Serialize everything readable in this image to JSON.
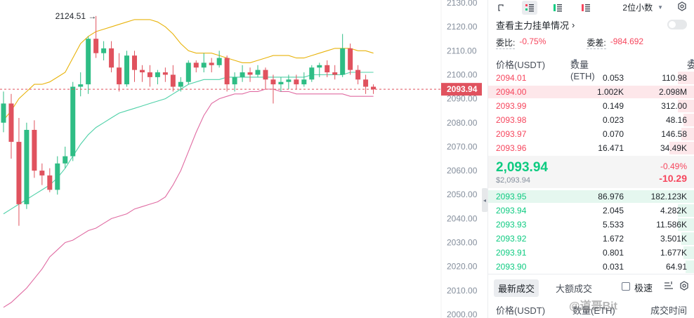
{
  "chart": {
    "y_ticks": [
      "2130.00",
      "2120.00",
      "2110.00",
      "2100.00",
      "2090.00",
      "2080.00",
      "2070.00",
      "2060.00",
      "2050.00",
      "2040.00",
      "2030.00",
      "2020.00",
      "2010.00",
      "2000.00"
    ],
    "high_label": "2124.51 →",
    "last_price_tag": "2093.94",
    "colors": {
      "up": "#2ebd85",
      "down": "#e0525e",
      "ma": "#e8b30b",
      "bb_mid": "#4fd1a8",
      "bb_low": "#e06ba2",
      "price_line": "#e0525e"
    }
  },
  "chart_data": {
    "type": "candlestick",
    "y_range": [
      2000,
      2130
    ],
    "last_price": 2093.94,
    "high_marker": 2124.51,
    "candles": [
      {
        "o": 2080.0,
        "c": 2088.0,
        "h": 2093.0,
        "l": 2076.0
      },
      {
        "o": 2088.0,
        "c": 2072.0,
        "h": 2092.0,
        "l": 2065.0
      },
      {
        "o": 2072.0,
        "c": 2046.0,
        "h": 2082.0,
        "l": 2037.0
      },
      {
        "o": 2046.0,
        "c": 2077.0,
        "h": 2080.0,
        "l": 2044.0
      },
      {
        "o": 2077.0,
        "c": 2060.0,
        "h": 2081.0,
        "l": 2057.0
      },
      {
        "o": 2060.0,
        "c": 2058.0,
        "h": 2063.0,
        "l": 2054.0
      },
      {
        "o": 2058.0,
        "c": 2052.0,
        "h": 2061.0,
        "l": 2051.0
      },
      {
        "o": 2052.0,
        "c": 2063.0,
        "h": 2066.0,
        "l": 2050.0
      },
      {
        "o": 2063.0,
        "c": 2066.0,
        "h": 2070.0,
        "l": 2061.0
      },
      {
        "o": 2066.0,
        "c": 2095.0,
        "h": 2097.0,
        "l": 2064.0
      },
      {
        "o": 2095.0,
        "c": 2096.0,
        "h": 2101.0,
        "l": 2091.0
      },
      {
        "o": 2096.0,
        "c": 2115.0,
        "h": 2116.0,
        "l": 2092.0
      },
      {
        "o": 2115.0,
        "c": 2109.0,
        "h": 2124.5,
        "l": 2107.0
      },
      {
        "o": 2109.0,
        "c": 2111.0,
        "h": 2114.0,
        "l": 2106.0
      },
      {
        "o": 2111.0,
        "c": 2103.0,
        "h": 2114.0,
        "l": 2101.0
      },
      {
        "o": 2103.0,
        "c": 2096.0,
        "h": 2109.0,
        "l": 2093.0
      },
      {
        "o": 2096.0,
        "c": 2108.0,
        "h": 2110.0,
        "l": 2095.0
      },
      {
        "o": 2108.0,
        "c": 2102.0,
        "h": 2110.0,
        "l": 2097.0
      },
      {
        "o": 2102.0,
        "c": 2101.0,
        "h": 2104.0,
        "l": 2097.0
      },
      {
        "o": 2101.0,
        "c": 2099.0,
        "h": 2104.0,
        "l": 2095.0
      },
      {
        "o": 2099.0,
        "c": 2101.0,
        "h": 2102.0,
        "l": 2096.0
      },
      {
        "o": 2101.0,
        "c": 2100.0,
        "h": 2103.0,
        "l": 2097.0
      },
      {
        "o": 2100.0,
        "c": 2095.0,
        "h": 2104.0,
        "l": 2093.0
      },
      {
        "o": 2095.0,
        "c": 2097.0,
        "h": 2099.0,
        "l": 2093.0
      },
      {
        "o": 2097.0,
        "c": 2105.0,
        "h": 2106.0,
        "l": 2096.0
      },
      {
        "o": 2105.0,
        "c": 2103.0,
        "h": 2106.0,
        "l": 2101.0
      },
      {
        "o": 2103.0,
        "c": 2105.0,
        "h": 2109.0,
        "l": 2101.0
      },
      {
        "o": 2105.0,
        "c": 2104.0,
        "h": 2107.0,
        "l": 2101.0
      },
      {
        "o": 2104.0,
        "c": 2107.0,
        "h": 2110.0,
        "l": 2103.0
      },
      {
        "o": 2107.0,
        "c": 2096.0,
        "h": 2108.0,
        "l": 2093.0
      },
      {
        "o": 2096.0,
        "c": 2099.0,
        "h": 2101.0,
        "l": 2093.0
      },
      {
        "o": 2099.0,
        "c": 2101.0,
        "h": 2104.0,
        "l": 2097.0
      },
      {
        "o": 2101.0,
        "c": 2100.0,
        "h": 2103.0,
        "l": 2097.0
      },
      {
        "o": 2100.0,
        "c": 2102.0,
        "h": 2104.0,
        "l": 2099.0
      },
      {
        "o": 2102.0,
        "c": 2098.0,
        "h": 2103.0,
        "l": 2094.0
      },
      {
        "o": 2098.0,
        "c": 2096.0,
        "h": 2100.0,
        "l": 2088.0
      },
      {
        "o": 2096.0,
        "c": 2097.0,
        "h": 2099.0,
        "l": 2093.0
      },
      {
        "o": 2097.0,
        "c": 2098.0,
        "h": 2100.0,
        "l": 2094.0
      },
      {
        "o": 2098.0,
        "c": 2096.0,
        "h": 2100.0,
        "l": 2094.0
      },
      {
        "o": 2096.0,
        "c": 2098.0,
        "h": 2101.0,
        "l": 2095.0
      },
      {
        "o": 2098.0,
        "c": 2103.0,
        "h": 2104.0,
        "l": 2097.0
      },
      {
        "o": 2103.0,
        "c": 2104.0,
        "h": 2105.0,
        "l": 2099.0
      },
      {
        "o": 2104.0,
        "c": 2101.0,
        "h": 2106.0,
        "l": 2099.0
      },
      {
        "o": 2101.0,
        "c": 2100.0,
        "h": 2104.0,
        "l": 2098.0
      },
      {
        "o": 2100.0,
        "c": 2111.0,
        "h": 2117.0,
        "l": 2099.0
      },
      {
        "o": 2111.0,
        "c": 2102.0,
        "h": 2113.0,
        "l": 2100.0
      },
      {
        "o": 2102.0,
        "c": 2098.0,
        "h": 2104.0,
        "l": 2096.0
      },
      {
        "o": 2098.0,
        "c": 2095.0,
        "h": 2100.0,
        "l": 2092.0
      },
      {
        "o": 2095.0,
        "c": 2093.9,
        "h": 2096.0,
        "l": 2092.0
      }
    ],
    "ma_line": [
      2081,
      2085,
      2090,
      2093,
      2096,
      2096,
      2097,
      2099,
      2101,
      2107,
      2113,
      2116,
      2118,
      2119,
      2120,
      2121,
      2122,
      2123,
      2123,
      2123,
      2122,
      2120,
      2117,
      2113,
      2110,
      2109,
      2109,
      2109,
      2108,
      2107,
      2106,
      2105,
      2105,
      2106,
      2107,
      2108,
      2108,
      2108,
      2107,
      2107,
      2108,
      2109,
      2110,
      2111,
      2111,
      2111,
      2110,
      2110,
      2109
    ],
    "bb_mid_line": [
      2042,
      2044,
      2046,
      2048,
      2050,
      2052,
      2054,
      2057,
      2061,
      2066,
      2071,
      2075,
      2078,
      2080,
      2082,
      2084,
      2085,
      2086,
      2087,
      2088,
      2089,
      2090,
      2092,
      2094,
      2096,
      2097,
      2098,
      2098,
      2098,
      2099,
      2099,
      2099,
      2099,
      2099,
      2099,
      2099,
      2099,
      2099,
      2099,
      2099,
      2100,
      2100,
      2100,
      2100,
      2100,
      2101,
      2101,
      2101,
      2101
    ],
    "bb_low_line": [
      2003,
      2005,
      2008,
      2011,
      2015,
      2019,
      2024,
      2027,
      2030,
      2031,
      2033,
      2035,
      2036,
      2038,
      2040,
      2041,
      2042,
      2044,
      2045,
      2046,
      2047,
      2049,
      2054,
      2060,
      2068,
      2076,
      2083,
      2088,
      2090,
      2091,
      2092,
      2092,
      2093,
      2093,
      2094,
      2094,
      2093,
      2093,
      2092,
      2092,
      2092,
      2092,
      2092,
      2092,
      2092,
      2091,
      2091,
      2091,
      2091
    ]
  },
  "toolbar": {
    "decimals": "2位小数",
    "main_link": "查看主力挂单情况",
    "ratio_label": "委比:",
    "ratio_value": "-0.75%",
    "diff_label": "委差:",
    "diff_value": "-984.692"
  },
  "book": {
    "headers": {
      "price": "价格(USDT)",
      "qty": "数量 (ETH)",
      "total": "委托额"
    },
    "asks": [
      {
        "price": "2094.01",
        "qty": "0.053",
        "total": "110.98",
        "depth": 0.08
      },
      {
        "price": "2094.00",
        "qty": "1.002K",
        "total": "2.098M",
        "depth": 1.0
      },
      {
        "price": "2093.99",
        "qty": "0.149",
        "total": "312.00",
        "depth": 0.08
      },
      {
        "price": "2093.98",
        "qty": "0.023",
        "total": "48.16",
        "depth": 0.05
      },
      {
        "price": "2093.97",
        "qty": "0.070",
        "total": "146.58",
        "depth": 0.06
      },
      {
        "price": "2093.96",
        "qty": "16.471",
        "total": "34.49K",
        "depth": 0.12
      }
    ],
    "mid": {
      "price": "2,093.94",
      "sub": "$2,093.94",
      "pct": "-0.49%",
      "chg": "-10.29"
    },
    "bids": [
      {
        "price": "2093.95",
        "qty": "86.976",
        "total": "182.123K",
        "depth": 1.0
      },
      {
        "price": "2093.94",
        "qty": "2.045",
        "total": "4.282K",
        "depth": 0.08
      },
      {
        "price": "2093.93",
        "qty": "5.533",
        "total": "11.586K",
        "depth": 0.08
      },
      {
        "price": "2093.92",
        "qty": "1.672",
        "total": "3.501K",
        "depth": 0.06
      },
      {
        "price": "2093.91",
        "qty": "0.801",
        "total": "1.677K",
        "depth": 0.05
      },
      {
        "price": "2093.90",
        "qty": "0.031",
        "total": "64.91",
        "depth": 0.04
      }
    ]
  },
  "trades": {
    "tab_latest": "最新成交",
    "tab_large": "大额成交",
    "fast_label": "极速",
    "head_price": "价格(USDT)",
    "head_qty": "数量(ETH)",
    "head_time": "成交时间"
  },
  "watermark": "@道哥Bit"
}
